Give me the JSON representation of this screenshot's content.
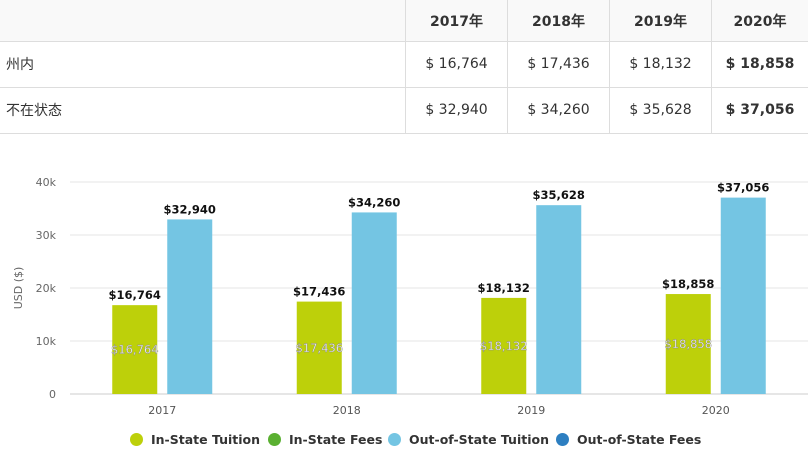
{
  "table": {
    "headers": [
      "",
      "2017年",
      "2018年",
      "2019年",
      "2020年"
    ],
    "rows": [
      {
        "label": "州内",
        "values": [
          "$ 16,764",
          "$ 17,436",
          "$ 18,132",
          "$ 18,858"
        ]
      },
      {
        "label": "不在状态",
        "values": [
          "$ 32,940",
          "$ 34,260",
          "$ 35,628",
          "$ 37,056"
        ]
      }
    ]
  },
  "chart_data": {
    "type": "bar",
    "categories": [
      "2017",
      "2018",
      "2019",
      "2020"
    ],
    "ylabel": "USD ($)",
    "ylim": [
      0,
      40000
    ],
    "yticks": [
      0,
      10000,
      20000,
      30000,
      40000
    ],
    "ytick_labels": [
      "0",
      "10k",
      "20k",
      "30k",
      "40k"
    ],
    "grid": true,
    "legend_position": "bottom",
    "series": [
      {
        "name": "In-State Tuition",
        "color": "#bdd00a",
        "values": [
          16764,
          17436,
          18132,
          18858
        ],
        "top_labels": [
          "$16,764",
          "$17,436",
          "$18,132",
          "$18,858"
        ],
        "inner_labels": [
          "$16,764",
          "$17,436",
          "$18,132",
          "$18,858"
        ]
      },
      {
        "name": "In-State Fees",
        "color": "#5ab031",
        "values": [
          0,
          0,
          0,
          0
        ]
      },
      {
        "name": "Out-of-State Tuition",
        "color": "#74c5e3",
        "values": [
          32940,
          34260,
          35628,
          37056
        ],
        "top_labels": [
          "$32,940",
          "$34,260",
          "$35,628",
          "$37,056"
        ]
      },
      {
        "name": "Out-of-State Fees",
        "color": "#2d7fc1",
        "values": [
          0,
          0,
          0,
          0
        ]
      }
    ]
  }
}
